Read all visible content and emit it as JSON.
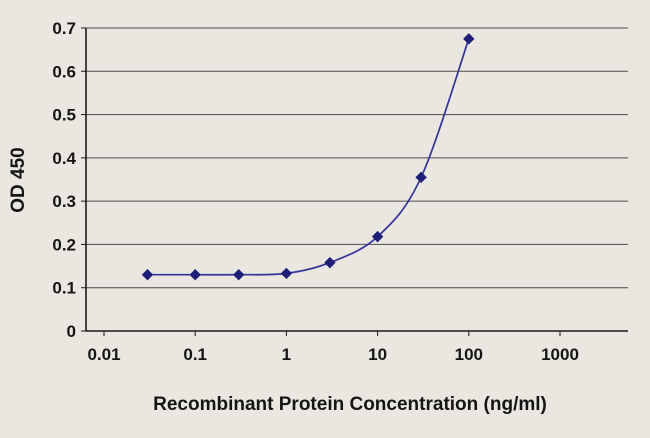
{
  "chart_data": {
    "type": "line",
    "x": [
      0.03,
      0.1,
      0.3,
      1,
      3,
      10,
      30,
      100
    ],
    "y": [
      0.13,
      0.13,
      0.13,
      0.133,
      0.158,
      0.218,
      0.355,
      0.675
    ],
    "xlabel": "Recombinant Protein Concentration (ng/ml)",
    "ylabel": "OD 450",
    "x_scale": "log",
    "xlim": [
      0.01,
      1000
    ],
    "ylim": [
      0,
      0.7
    ],
    "x_ticks": [
      0.01,
      0.1,
      1,
      10,
      100,
      1000
    ],
    "x_tick_labels": [
      "0.01",
      "0.1",
      "1",
      "10",
      "100",
      "1000"
    ],
    "y_ticks": [
      0,
      0.1,
      0.2,
      0.3,
      0.4,
      0.5,
      0.6,
      0.7
    ],
    "y_tick_labels": [
      "0",
      "0.1",
      "0.2",
      "0.3",
      "0.4",
      "0.5",
      "0.6",
      "0.7"
    ],
    "grid": "horizontal",
    "legend": null,
    "colors": {
      "line": "#333399",
      "marker": "#1f1f7a",
      "background": "#e9e7e0",
      "gridline": "#4d4d4d",
      "axis": "#1a1a1a",
      "text": "#151515"
    }
  }
}
